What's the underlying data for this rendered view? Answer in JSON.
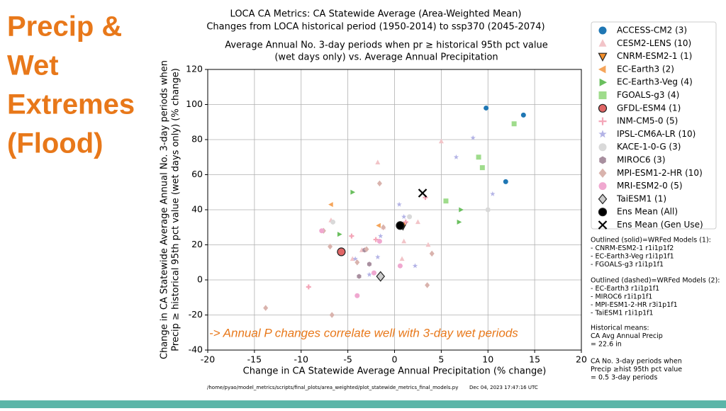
{
  "slide_title": [
    "Precip &",
    "Wet",
    "Extremes",
    "(Flood)"
  ],
  "chart_data": {
    "type": "scatter",
    "title": [
      "LOCA CA Metrics: CA Statewide Average (Area-Weighted Mean)",
      "Changes from LOCA historical period (1950-2014) to ssp370 (2045-2074)"
    ],
    "subtitle": [
      "Average Annual No. 3-day periods when pr  ≥  historical 95th pct value",
      "(wet days only) vs. Average Annual Precipitation"
    ],
    "xlabel": "Change in CA Statewide Average Annual Precipitation (% change)",
    "ylabel": [
      "Change in CA Statewide Average Annual No. 3-day periods when",
      "Precip  ≥  historical 95th pct value (wet days only) (% change)"
    ],
    "xlim": [
      -20,
      20
    ],
    "xticks": [
      -20,
      -15,
      -10,
      -5,
      0,
      5,
      10,
      15,
      20
    ],
    "ylim": [
      -40,
      120
    ],
    "yticks": [
      -40,
      -20,
      0,
      20,
      40,
      60,
      80,
      100,
      120
    ],
    "grid": true,
    "legend": "outside-right",
    "annotation": "-> Annual P changes correlate well with 3-day wet periods",
    "series": [
      {
        "name": "ACCESS-CM2 (3)",
        "color": "#1f77b4",
        "marker": "circle",
        "x": [
          13.8,
          9.8,
          11.9
        ],
        "values": [
          94,
          98,
          56
        ]
      },
      {
        "name": "CESM2-LENS (10)",
        "color": "#f2c4c8",
        "marker": "triangle-up",
        "x": [
          -1.8,
          5,
          -6.8,
          -1.2,
          2.5,
          -3.5,
          1,
          -4.5,
          0.8,
          3.6
        ],
        "values": [
          67,
          79,
          34,
          30,
          33,
          17,
          22,
          12,
          12,
          20
        ]
      },
      {
        "name": "CNRM-ESM2-1 (1)",
        "color": "#f28e2b",
        "marker": "triangle-down",
        "x": [
          0.9
        ],
        "values": [
          31
        ]
      },
      {
        "name": "EC-Earth3 (2)",
        "color": "#f5a55a",
        "marker": "triangle-left",
        "x": [
          -6.8,
          -1.7
        ],
        "values": [
          43,
          31
        ]
      },
      {
        "name": "EC-Earth3-Veg (4)",
        "color": "#6abf5e",
        "marker": "triangle-right",
        "x": [
          -4.5,
          7.1,
          6.9,
          -5.9
        ],
        "values": [
          50,
          40,
          33,
          26
        ]
      },
      {
        "name": "FGOALS-g3 (4)",
        "color": "#9fdc8c",
        "marker": "square",
        "x": [
          9.4,
          9,
          12.8,
          5.5
        ],
        "values": [
          64,
          70,
          89,
          45
        ]
      },
      {
        "name": "GFDL-ESM4 (1)",
        "color": "#e06666",
        "marker": "circle",
        "x": [
          -5.7
        ],
        "values": [
          16
        ]
      },
      {
        "name": "INM-CM5-0 (5)",
        "color": "#f4a6b8",
        "marker": "plus",
        "x": [
          -9.2,
          -2,
          1.2,
          -4.6,
          3.3
        ],
        "values": [
          -4,
          23,
          33,
          25,
          47
        ]
      },
      {
        "name": "IPSL-CM6A-LR (10)",
        "color": "#b3b3e6",
        "marker": "star",
        "x": [
          8.4,
          10.5,
          0.5,
          -1.8,
          -2.7,
          1,
          -4.2,
          2.2,
          6.6,
          -1.5
        ],
        "values": [
          81,
          49,
          43,
          13,
          3,
          36,
          12,
          8,
          70,
          25
        ]
      },
      {
        "name": "KACE-1-0-G (3)",
        "color": "#d9d9d9",
        "marker": "circle",
        "x": [
          -6.6,
          1.6,
          10
        ],
        "values": [
          33,
          36,
          40
        ]
      },
      {
        "name": "MIROC6 (3)",
        "color": "#a88f9f",
        "marker": "hexagon",
        "x": [
          -3.2,
          -2.7,
          -3.8
        ],
        "values": [
          17,
          9,
          2
        ]
      },
      {
        "name": "MPI-ESM1-2-HR (10)",
        "color": "#d9b3ad",
        "marker": "diamond",
        "x": [
          -3,
          -1.6,
          -1.2,
          -7.6,
          -6.9,
          -4,
          4,
          3.5,
          -13.8,
          -6.7
        ],
        "values": [
          17.5,
          55,
          30,
          28,
          19,
          10,
          15,
          -3,
          -16,
          -20
        ]
      },
      {
        "name": "MRI-ESM2-0 (5)",
        "color": "#f0a8d0",
        "marker": "circle",
        "x": [
          -7.8,
          -4,
          0.6,
          -2.2,
          -1.6
        ],
        "values": [
          28,
          -9,
          8,
          4,
          22
        ]
      },
      {
        "name": "TaiESM1 (1)",
        "color": "#cccccc",
        "marker": "diamond",
        "x": [
          -1.5
        ],
        "values": [
          2
        ]
      },
      {
        "name": "Ens Mean (All)",
        "color": "#000000",
        "marker": "circle",
        "x": [
          0.6
        ],
        "values": [
          31
        ]
      },
      {
        "name": "Ens Mean (Gen Use)",
        "color": "#000000",
        "marker": "x",
        "x": [
          3
        ],
        "values": [
          49.5
        ]
      }
    ]
  },
  "notes": [
    [
      "Outlined (solid)=WRFed Models (1):",
      "- CNRM-ESM2-1 r1i1p1f2",
      "- EC-Earth3-Veg r1i1p1f1",
      "- FGOALS-g3 r1i1p1f1"
    ],
    [
      "Outlined (dashed)=WRFed Models (2):",
      "- EC-Earth3 r1i1p1f1",
      "- MIROC6 r1i1p1f1",
      "- MPI-ESM1-2-HR r3i1p1f1",
      "- TaiESM1 r1i1p1f1"
    ],
    [
      "Historical means:",
      "CA Avg Annual Precip",
      "= 22.6 in"
    ],
    [
      "CA No. 3-day periods when",
      "Precip  ≥hist 95th pct value",
      "= 0.5 3-day periods"
    ]
  ],
  "footer": [
    "/home/pyao/model_metrics/scripts/final_plots/area_weighted/plot_statewide_metrics_final_models.py",
    "Dec 04, 2023 17:47:16 UTC"
  ]
}
